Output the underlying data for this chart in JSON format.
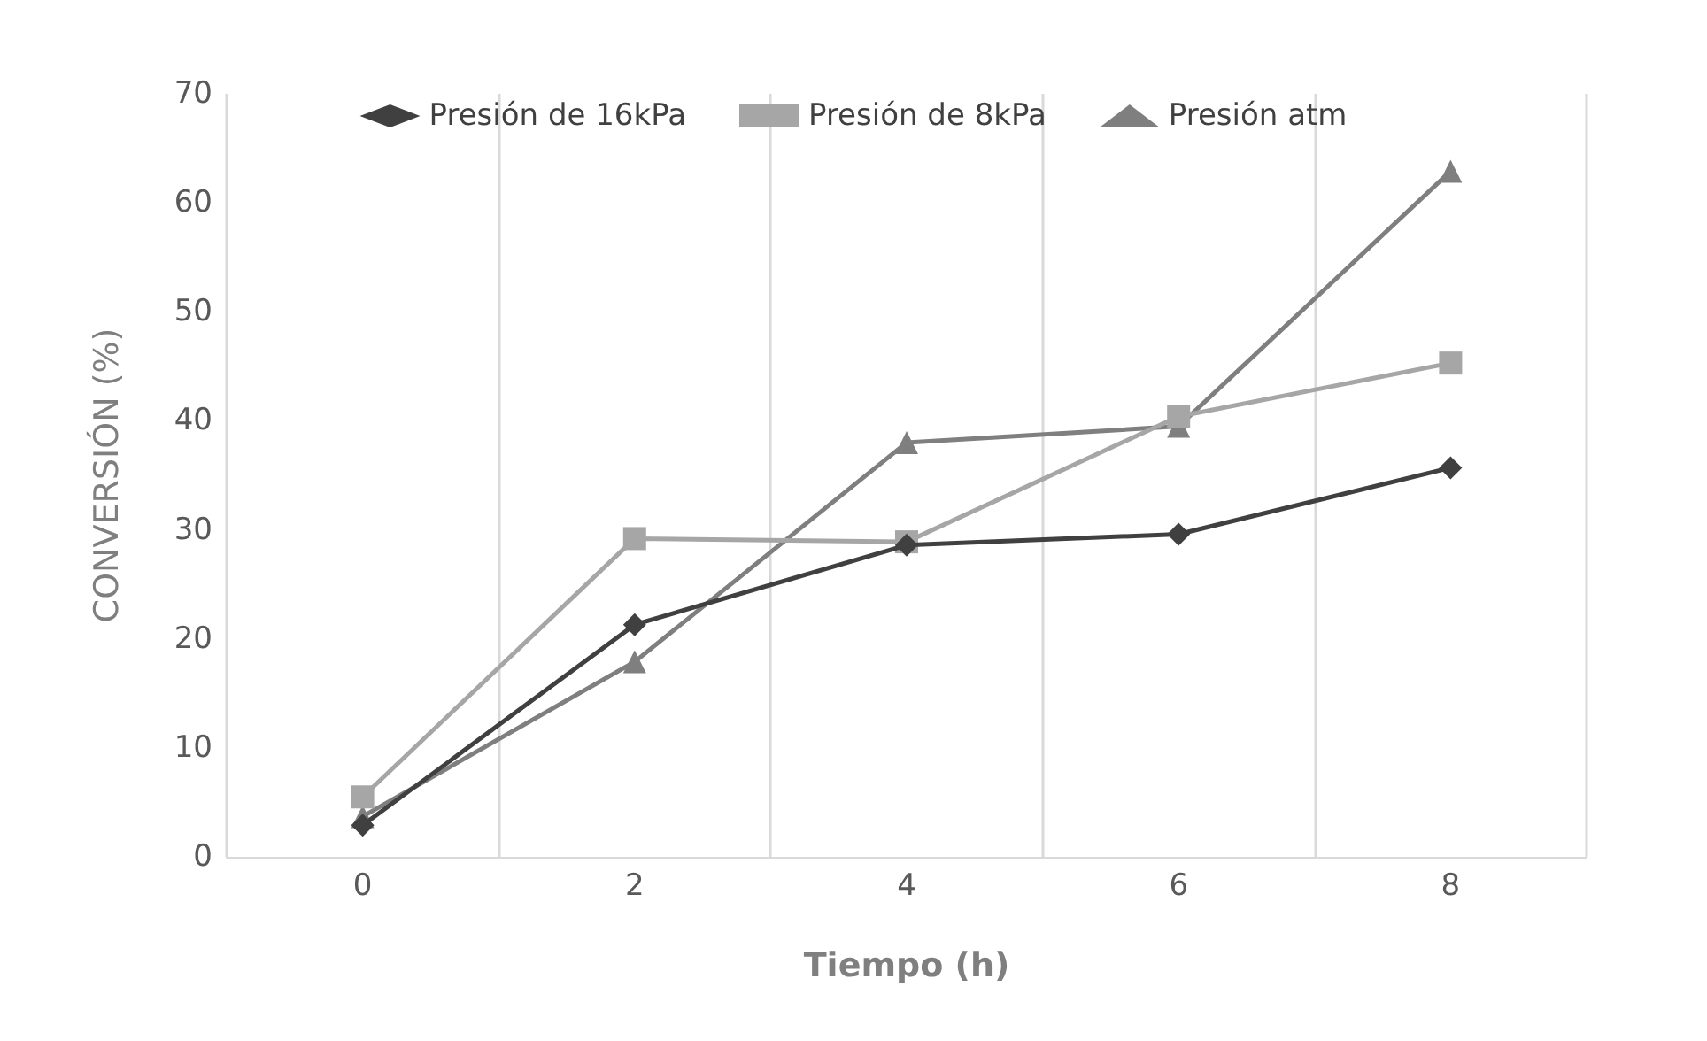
{
  "chart_data": {
    "type": "line",
    "xlabel": "Tiempo (h)",
    "ylabel": "CONVERSIÓN (%)",
    "categories": [
      "0",
      "2",
      "4",
      "6",
      "8"
    ],
    "series": [
      {
        "name": "Presión de 16kPa",
        "color": "#404040",
        "marker": "diamond",
        "values": [
          2.9,
          21.3,
          28.6,
          29.6,
          35.7
        ]
      },
      {
        "name": "Presión de 8kPa",
        "color": "#a6a6a6",
        "marker": "square",
        "values": [
          5.5,
          29.2,
          28.9,
          40.4,
          45.3
        ]
      },
      {
        "name": "Presión atm",
        "color": "#7f7f7f",
        "marker": "triangle",
        "values": [
          3.7,
          17.9,
          38.0,
          39.5,
          62.9
        ]
      }
    ],
    "ylim": [
      0,
      70
    ],
    "yticks": [
      0,
      10,
      20,
      30,
      40,
      50,
      60,
      70
    ],
    "grid": "x",
    "legend": "top"
  }
}
